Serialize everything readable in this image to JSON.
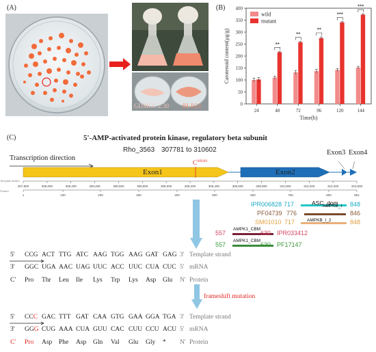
{
  "panel_a": {
    "label": "(A)",
    "flask_caption_left": "GDMCC 2.30",
    "flask_caption_right": "JH-R23",
    "colors": {
      "colony": "#f26b3a",
      "arrow": "#e8211c",
      "plate_bg": "#e9eef0",
      "caption_left": "#f4c6b7",
      "caption_right": "#f08a6e"
    }
  },
  "chart_data": {
    "type": "bar",
    "panel_label": "(B)",
    "categories": [
      "24",
      "48",
      "72",
      "96",
      "120",
      "144"
    ],
    "series": [
      {
        "name": "wild",
        "color": "#f28b8b",
        "values": [
          100,
          110,
          132,
          137,
          142,
          152
        ],
        "errors": [
          8,
          6,
          8,
          8,
          6,
          5
        ]
      },
      {
        "name": "mutant",
        "color": "#e8332e",
        "values": [
          102,
          216,
          258,
          275,
          341,
          373
        ],
        "errors": [
          8,
          3,
          3,
          5,
          3,
          4
        ]
      }
    ],
    "significance": [
      {
        "category": "48",
        "label": "**"
      },
      {
        "category": "72",
        "label": "**"
      },
      {
        "category": "96",
        "label": "**"
      },
      {
        "category": "120",
        "label": "***"
      },
      {
        "category": "144",
        "label": "***"
      }
    ],
    "xlabel": "Time(h)",
    "ylabel": "Carotenoid content(μg/g)",
    "ylim": [
      0,
      400
    ],
    "yticks": [
      "0",
      "50",
      "100",
      "150",
      "200",
      "250",
      "300",
      "350",
      "400"
    ],
    "legend_position": "top-left",
    "grid": false
  },
  "panel_c": {
    "label": "(C)",
    "title": "5'-AMP-activated protein kinase, regulatory beta subunit",
    "gene_name": "Rho_3563",
    "coords": "307781 to 310602",
    "transcription_direction": "Transcription direction",
    "exon1": "Exon1",
    "exon2": "Exon2",
    "exon3": "Exon3",
    "exon4": "Exon4",
    "mutation_marker": "C",
    "mutation_pos": "309249",
    "template_track_label": "Template strand",
    "protein_track_label": "Protein",
    "nt_ticks": [
      "307,800",
      "308,000",
      "308,200",
      "308,400",
      "308,600",
      "308,800",
      "309,000",
      "309,200",
      "309,400",
      "309,600",
      "309,800",
      "310,000",
      "310,200",
      "310,400",
      "310,600"
    ],
    "aa_ticks": [
      "1",
      "100",
      "200",
      "300",
      "400",
      "500",
      "600",
      "700",
      "800",
      "851"
    ],
    "colors": {
      "exon1": "#f5c51a",
      "exon2": "#1f6fb8",
      "mutation": "#e0261f"
    }
  },
  "domains": [
    {
      "id": "IPR006828",
      "start": "717",
      "name": "ASC_dom",
      "end": "848",
      "color": "#22c7c7",
      "text_color": "#1aa9c4"
    },
    {
      "id": "PF04739",
      "start": "776",
      "name": "AMPKB_I",
      "end": "846",
      "color": "#7b4a2a",
      "text_color": "#8a5a3a"
    },
    {
      "id": "SM01010",
      "start": "717",
      "name": "AMPKB_I_2",
      "end": "848",
      "color": "#e9b07a",
      "text_color": "#e0a040"
    },
    {
      "id": "IPR033412",
      "start": "557",
      "name": "AMPK1_CBM",
      "end": "630",
      "color": "#7a1f3a",
      "text_color": "#d1455f"
    },
    {
      "id": "PF17147",
      "start": "557",
      "name": "AMPK1_CBM",
      "end": "630",
      "color": "#3a8a3a",
      "text_color": "#3a9a3a"
    }
  ],
  "wild_sequence": {
    "template_start": "5'",
    "template_end": "3'",
    "template_label": "Template strand",
    "template_codons": [
      "CCG",
      "ACT",
      "TTG",
      "ATC",
      "AAG",
      "TGG",
      "AAG",
      "GAT",
      "GAG"
    ],
    "mrna_start": "3'",
    "mrna_end": "5'",
    "mrna_label": "mRNA",
    "mrna_codons": [
      "GGC",
      "UGA",
      "AAC",
      "UAG",
      "UUC",
      "ACC",
      "UUC",
      "CUA",
      "CUC"
    ],
    "protein_start": "C'",
    "protein_end": "N'",
    "protein_label": "Protein",
    "amino_acids": [
      "Pro",
      "Thr",
      "Leu",
      "Ile",
      "Lys",
      "Trp",
      "Lys",
      "Asp",
      "Glu"
    ]
  },
  "frameshift_label": "frameshift mutation",
  "mutant_sequence": {
    "template_start": "5'",
    "template_end": "3'",
    "template_label": "Template strand",
    "first_codon_prefix": "CC",
    "first_codon_mut": "C",
    "template_codons": [
      "GAC",
      "TTT",
      "GAT",
      "CAA",
      "GTG",
      "GAA",
      "GGA",
      "TGA"
    ],
    "mrna_start": "3'",
    "mrna_end": "5'",
    "mrna_label": "mRNA",
    "first_mrna_prefix": "GG",
    "first_mrna_mut": "G",
    "mrna_codons": [
      "CUG",
      "AAA",
      "CUA",
      "GUU",
      "CAC",
      "CUU",
      "CCU",
      "ACU"
    ],
    "protein_start": "C'",
    "protein_end": "N'",
    "protein_label": "Protein",
    "first_aa": "Pro",
    "amino_acids": [
      "Asp",
      "Phe",
      "Asp",
      "Gln",
      "Val",
      "Glu",
      "Gly",
      "*"
    ]
  }
}
